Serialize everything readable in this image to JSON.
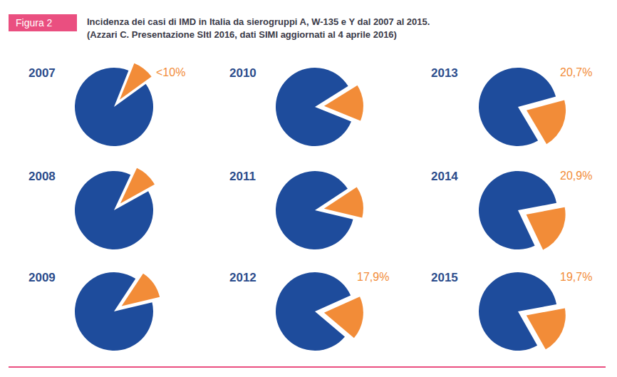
{
  "header": {
    "label": "Figura 2",
    "title": "Incidenza dei casi di IMD in Italia da sierogruppi A, W-135 e Y dal 2007 al 2015.",
    "subtitle": "(Azzari C. Presentazione SItI 2016, dati SIMI aggiornati al 4 aprile 2016)"
  },
  "chart_data": [
    {
      "type": "pie",
      "title": "2007",
      "values": [
        9,
        91
      ],
      "value_labels": [
        "<10%",
        null
      ],
      "colors": [
        "#f28c38",
        "#1e4c9c"
      ]
    },
    {
      "type": "pie",
      "title": "2008",
      "values": [
        10,
        90
      ],
      "value_labels": [
        null,
        null
      ],
      "colors": [
        "#f28c38",
        "#1e4c9c"
      ]
    },
    {
      "type": "pie",
      "title": "2009",
      "values": [
        12,
        88
      ],
      "value_labels": [
        null,
        null
      ],
      "colors": [
        "#f28c38",
        "#1e4c9c"
      ]
    },
    {
      "type": "pie",
      "title": "2010",
      "values": [
        15,
        85
      ],
      "value_labels": [
        null,
        null
      ],
      "colors": [
        "#f28c38",
        "#1e4c9c"
      ]
    },
    {
      "type": "pie",
      "title": "2011",
      "values": [
        13,
        87
      ],
      "value_labels": [
        null,
        null
      ],
      "colors": [
        "#f28c38",
        "#1e4c9c"
      ]
    },
    {
      "type": "pie",
      "title": "2012",
      "values": [
        17.9,
        82.1
      ],
      "value_labels": [
        "17,9%",
        null
      ],
      "colors": [
        "#f28c38",
        "#1e4c9c"
      ]
    },
    {
      "type": "pie",
      "title": "2013",
      "values": [
        20.7,
        79.3
      ],
      "value_labels": [
        "20,7%",
        null
      ],
      "colors": [
        "#f28c38",
        "#1e4c9c"
      ]
    },
    {
      "type": "pie",
      "title": "2014",
      "values": [
        20.9,
        79.1
      ],
      "value_labels": [
        "20,9%",
        null
      ],
      "colors": [
        "#f28c38",
        "#1e4c9c"
      ]
    },
    {
      "type": "pie",
      "title": "2015",
      "values": [
        19.7,
        80.3
      ],
      "value_labels": [
        "19,7%",
        null
      ],
      "colors": [
        "#f28c38",
        "#1e4c9c"
      ]
    }
  ]
}
